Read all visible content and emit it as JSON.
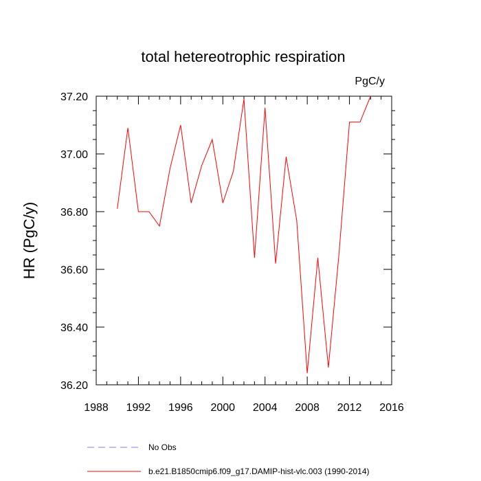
{
  "chart_data": {
    "type": "line",
    "title": "total hetereotrophic respiration",
    "units_label": "PgC/y",
    "xlabel": "",
    "ylabel": "HR  (PgC/y)",
    "xlim": [
      1988,
      2016
    ],
    "ylim": [
      36.2,
      37.2
    ],
    "x_ticks": [
      1988,
      1992,
      1996,
      2000,
      2004,
      2008,
      2012,
      2016
    ],
    "x_tick_labels": [
      "1988",
      "1992",
      "1996",
      "2000",
      "2004",
      "2008",
      "2012",
      "2016"
    ],
    "y_ticks": [
      36.2,
      36.4,
      36.6,
      36.8,
      37.0,
      37.2
    ],
    "y_tick_labels": [
      "36.20",
      "36.40",
      "36.60",
      "36.80",
      "37.00",
      "37.20"
    ],
    "series": [
      {
        "name": "b.e21.B1850cmip6.f09_g17.DAMIP-hist-vlc.003 (1990-2014)",
        "color": "#ff0000",
        "style": "solid",
        "x": [
          1990,
          1991,
          1992,
          1993,
          1994,
          1995,
          1996,
          1997,
          1998,
          1999,
          2000,
          2001,
          2002,
          2003,
          2004,
          2005,
          2006,
          2007,
          2008,
          2009,
          2010,
          2011,
          2012,
          2013,
          2014
        ],
        "values": [
          36.81,
          37.09,
          36.8,
          36.8,
          36.75,
          36.95,
          37.1,
          36.83,
          36.96,
          37.05,
          36.83,
          36.94,
          37.19,
          36.64,
          37.16,
          36.62,
          36.99,
          36.77,
          36.24,
          36.64,
          36.26,
          36.65,
          37.11,
          37.11,
          37.2
        ]
      }
    ],
    "legend": [
      {
        "label": "No Obs",
        "color": "#8080ff",
        "style": "dashed"
      },
      {
        "label": "b.e21.B1850cmip6.f09_g17.DAMIP-hist-vlc.003 (1990-2014)",
        "color": "#ff0000",
        "style": "solid"
      }
    ]
  }
}
